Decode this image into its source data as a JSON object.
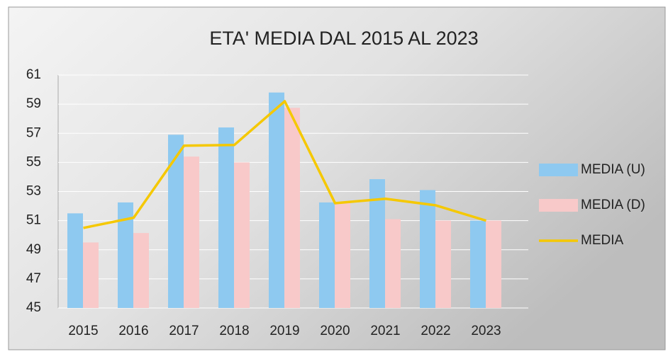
{
  "chart_data": {
    "type": "bar_line",
    "title": "ETA' MEDIA DAL 2015 AL 2023",
    "categories": [
      "2015",
      "2016",
      "2017",
      "2018",
      "2019",
      "2020",
      "2021",
      "2022",
      "2023"
    ],
    "series": [
      {
        "name": "MEDIA (U)",
        "type": "bar",
        "color": "#8ec9f0",
        "values": [
          51.5,
          52.25,
          56.9,
          57.4,
          59.8,
          52.25,
          53.85,
          53.1,
          51.0
        ]
      },
      {
        "name": "MEDIA (D)",
        "type": "bar",
        "color": "#f8c9c9",
        "values": [
          49.5,
          50.15,
          55.4,
          55.0,
          58.75,
          52.25,
          51.1,
          51.0,
          51.0
        ]
      },
      {
        "name": "MEDIA",
        "type": "line",
        "color": "#f5c800",
        "values": [
          50.5,
          51.2,
          56.15,
          56.2,
          59.2,
          52.2,
          52.5,
          52.05,
          51.0
        ]
      }
    ],
    "ylim": [
      45,
      61
    ],
    "yticks": [
      45,
      47,
      49,
      51,
      53,
      55,
      57,
      59,
      61
    ],
    "grid": true,
    "legend": "right"
  }
}
